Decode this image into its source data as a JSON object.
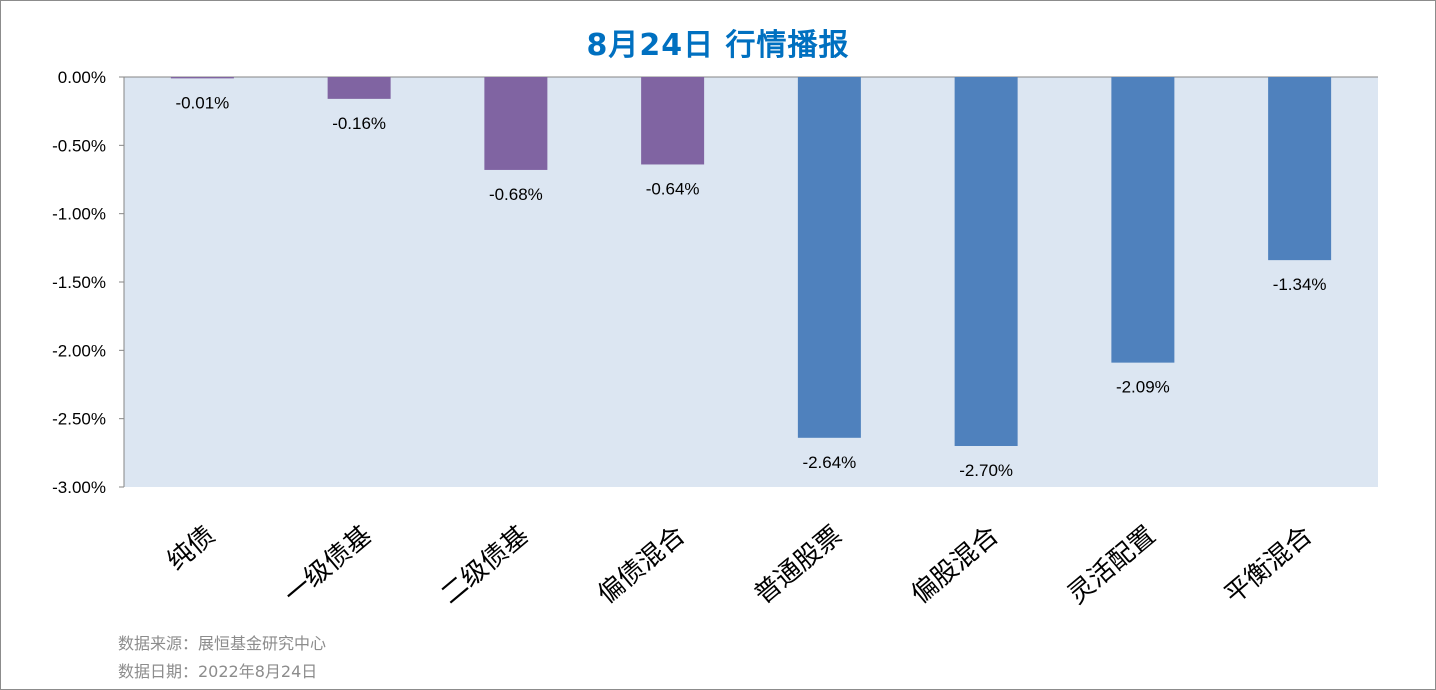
{
  "title": "8月24日  行情播报",
  "chart_data": {
    "type": "bar",
    "categories": [
      "纯债",
      "一级债基",
      "二级债基",
      "偏债混合",
      "普通股票",
      "偏股混合",
      "灵活配置",
      "平衡混合"
    ],
    "values": [
      -0.01,
      -0.16,
      -0.68,
      -0.64,
      -2.64,
      -2.7,
      -2.09,
      -1.34
    ],
    "data_labels": [
      "-0.01%",
      "-0.16%",
      "-0.68%",
      "-0.64%",
      "-2.64%",
      "-2.70%",
      "-2.09%",
      "-1.34%"
    ],
    "bar_colors": [
      "#8064a2",
      "#8064a2",
      "#8064a2",
      "#8064a2",
      "#4f81bd",
      "#4f81bd",
      "#4f81bd",
      "#4f81bd"
    ],
    "ylim": [
      -3.0,
      0.0
    ],
    "yticks": [
      0.0,
      -0.5,
      -1.0,
      -1.5,
      -2.0,
      -2.5,
      -3.0
    ],
    "ytick_labels": [
      "0.00%",
      "-0.50%",
      "-1.00%",
      "-1.50%",
      "-2.00%",
      "-2.50%",
      "-3.00%"
    ],
    "plot_background": "#dce6f2",
    "grid": false,
    "legend": "none"
  },
  "footer": {
    "source": "数据来源：展恒基金研究中心",
    "date": "数据日期：2022年8月24日"
  }
}
